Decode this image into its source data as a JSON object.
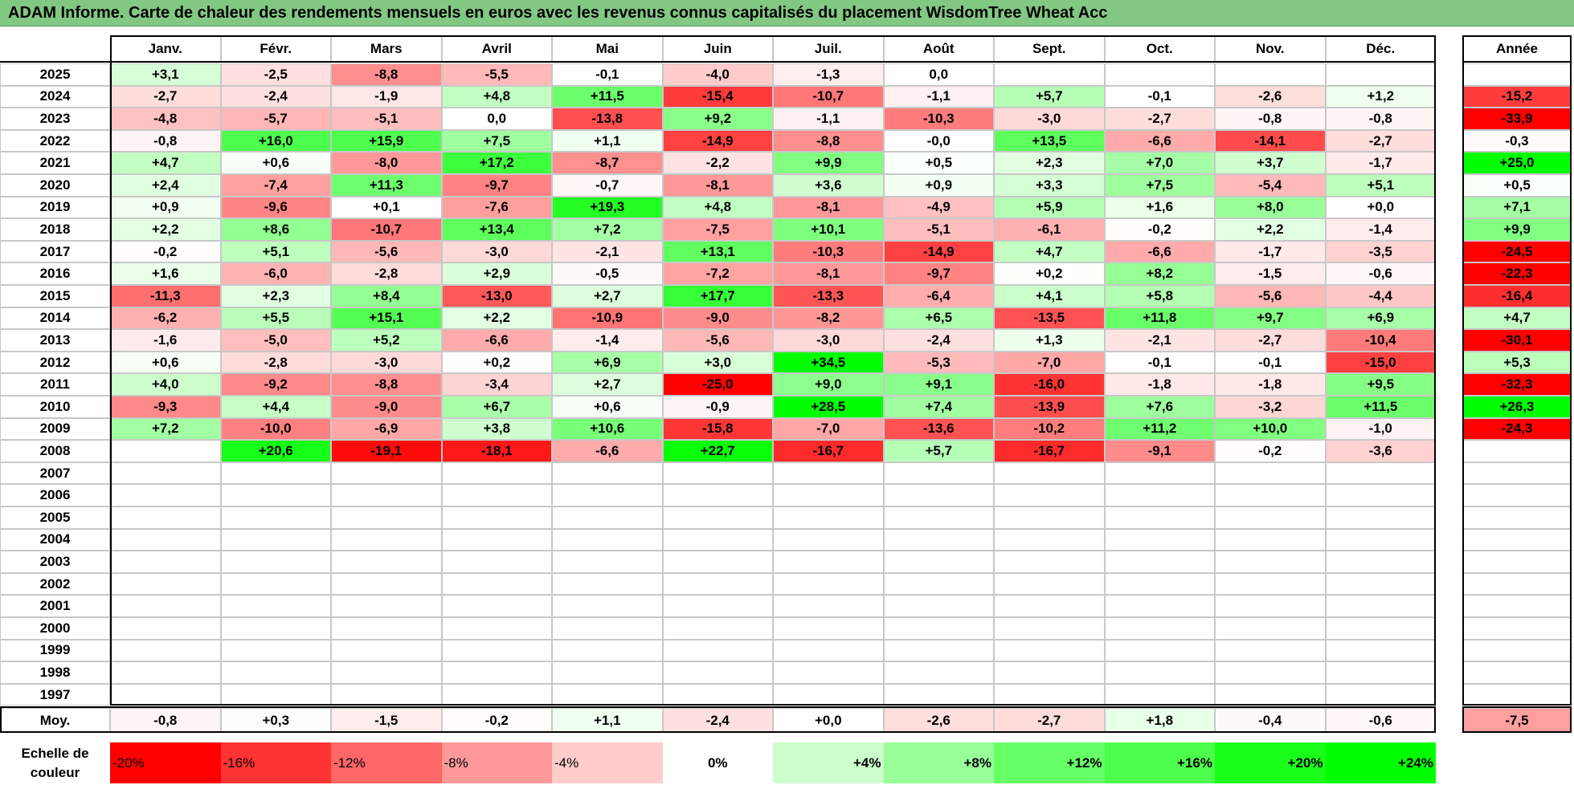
{
  "title": "ADAM Informe. Carte de chaleur des rendements mensuels en euros avec les revenus connus capitalisés du placement WisdomTree Wheat Acc",
  "table": {
    "months": [
      "Janv.",
      "Févr.",
      "Mars",
      "Avril",
      "Mai",
      "Juin",
      "Juil.",
      "Août",
      "Sept.",
      "Oct.",
      "Nov.",
      "Déc."
    ],
    "year_header": "Année",
    "rows": [
      {
        "year": "2025",
        "cells": [
          "+3,1",
          "-2,5",
          "-8,8",
          "-5,5",
          "-0,1",
          "-4,0",
          "-1,3",
          "0,0",
          null,
          null,
          null,
          null
        ],
        "annee": null
      },
      {
        "year": "2024",
        "cells": [
          "-2,7",
          "-2,4",
          "-1,9",
          "+4,8",
          "+11,5",
          "-15,4",
          "-10,7",
          "-1,1",
          "+5,7",
          "-0,1",
          "-2,6",
          "+1,2"
        ],
        "annee": "-15,2"
      },
      {
        "year": "2023",
        "cells": [
          "-4,8",
          "-5,7",
          "-5,1",
          "0,0",
          "-13,8",
          "+9,2",
          "-1,1",
          "-10,3",
          "-3,0",
          "-2,7",
          "-0,8",
          "-0,8"
        ],
        "annee": "-33,9"
      },
      {
        "year": "2022",
        "cells": [
          "-0,8",
          "+16,0",
          "+15,9",
          "+7,5",
          "+1,1",
          "-14,9",
          "-8,8",
          "-0,0",
          "+13,5",
          "-6,6",
          "-14,1",
          "-2,7"
        ],
        "annee": "-0,3"
      },
      {
        "year": "2021",
        "cells": [
          "+4,7",
          "+0,6",
          "-8,0",
          "+17,2",
          "-8,7",
          "-2,2",
          "+9,9",
          "+0,5",
          "+2,3",
          "+7,0",
          "+3,7",
          "-1,7"
        ],
        "annee": "+25,0"
      },
      {
        "year": "2020",
        "cells": [
          "+2,4",
          "-7,4",
          "+11,3",
          "-9,7",
          "-0,7",
          "-8,1",
          "+3,6",
          "+0,9",
          "+3,3",
          "+7,5",
          "-5,4",
          "+5,1"
        ],
        "annee": "+0,5"
      },
      {
        "year": "2019",
        "cells": [
          "+0,9",
          "-9,6",
          "+0,1",
          "-7,6",
          "+19,3",
          "+4,8",
          "-8,1",
          "-4,9",
          "+5,9",
          "+1,6",
          "+8,0",
          "+0,0"
        ],
        "annee": "+7,1"
      },
      {
        "year": "2018",
        "cells": [
          "+2,2",
          "+8,6",
          "-10,7",
          "+13,4",
          "+7,2",
          "-7,5",
          "+10,1",
          "-5,1",
          "-6,1",
          "-0,2",
          "+2,2",
          "-1,4"
        ],
        "annee": "+9,9"
      },
      {
        "year": "2017",
        "cells": [
          "-0,2",
          "+5,1",
          "-5,6",
          "-3,0",
          "-2,1",
          "+13,1",
          "-10,3",
          "-14,9",
          "+4,7",
          "-6,6",
          "-1,7",
          "-3,5"
        ],
        "annee": "-24,5"
      },
      {
        "year": "2016",
        "cells": [
          "+1,6",
          "-6,0",
          "-2,8",
          "+2,9",
          "-0,5",
          "-7,2",
          "-8,1",
          "-9,7",
          "+0,2",
          "+8,2",
          "-1,5",
          "-0,6"
        ],
        "annee": "-22,3"
      },
      {
        "year": "2015",
        "cells": [
          "-11,3",
          "+2,3",
          "+8,4",
          "-13,0",
          "+2,7",
          "+17,7",
          "-13,3",
          "-6,4",
          "+4,1",
          "+5,8",
          "-5,6",
          "-4,4"
        ],
        "annee": "-16,4"
      },
      {
        "year": "2014",
        "cells": [
          "-6,2",
          "+5,5",
          "+15,1",
          "+2,2",
          "-10,9",
          "-9,0",
          "-8,2",
          "+6,5",
          "-13,5",
          "+11,8",
          "+9,7",
          "+6,9"
        ],
        "annee": "+4,7"
      },
      {
        "year": "2013",
        "cells": [
          "-1,6",
          "-5,0",
          "+5,2",
          "-6,6",
          "-1,4",
          "-5,6",
          "-3,0",
          "-2,4",
          "+1,3",
          "-2,1",
          "-2,7",
          "-10,4"
        ],
        "annee": "-30,1"
      },
      {
        "year": "2012",
        "cells": [
          "+0,6",
          "-2,8",
          "-3,0",
          "+0,2",
          "+6,9",
          "+3,0",
          "+34,5",
          "-5,3",
          "-7,0",
          "-0,1",
          "-0,1",
          "-15,0"
        ],
        "annee": "+5,3"
      },
      {
        "year": "2011",
        "cells": [
          "+4,0",
          "-9,2",
          "-8,8",
          "-3,4",
          "+2,7",
          "-25,0",
          "+9,0",
          "+9,1",
          "-16,0",
          "-1,8",
          "-1,8",
          "+9,5"
        ],
        "annee": "-32,3"
      },
      {
        "year": "2010",
        "cells": [
          "-9,3",
          "+4,4",
          "-9,0",
          "+6,7",
          "+0,6",
          "-0,9",
          "+28,5",
          "+7,4",
          "-13,9",
          "+7,6",
          "-3,2",
          "+11,5"
        ],
        "annee": "+26,3"
      },
      {
        "year": "2009",
        "cells": [
          "+7,2",
          "-10,0",
          "-6,9",
          "+3,8",
          "+10,6",
          "-15,8",
          "-7,0",
          "-13,6",
          "-10,2",
          "+11,2",
          "+10,0",
          "-1,0"
        ],
        "annee": "-24,3"
      },
      {
        "year": "2008",
        "cells": [
          null,
          "+20,6",
          "-19,1",
          "-18,1",
          "-6,6",
          "+22,7",
          "-16,7",
          "+5,7",
          "-16,7",
          "-9,1",
          "-0,2",
          "-3,6"
        ],
        "annee": null
      },
      {
        "year": "2007"
      },
      {
        "year": "2006"
      },
      {
        "year": "2005"
      },
      {
        "year": "2004"
      },
      {
        "year": "2003"
      },
      {
        "year": "2002"
      },
      {
        "year": "2001"
      },
      {
        "year": "2000"
      },
      {
        "year": "1999"
      },
      {
        "year": "1998"
      },
      {
        "year": "1997"
      }
    ],
    "average": {
      "label": "Moy.",
      "cells": [
        "-0,8",
        "+0,3",
        "-1,5",
        "-0,2",
        "+1,1",
        "-2,4",
        "+0,0",
        "-2,6",
        "-2,7",
        "+1,8",
        "-0,4",
        "-0,6"
      ],
      "annee": "-7,5"
    }
  },
  "scale": {
    "label": "Echelle de couleur",
    "steps": [
      {
        "label": "-20%",
        "color": "#ff0000"
      },
      {
        "label": "-16%",
        "color": "#ff3333"
      },
      {
        "label": "-12%",
        "color": "#ff6666"
      },
      {
        "label": "-8%",
        "color": "#ff9999"
      },
      {
        "label": "-4%",
        "color": "#ffcccc"
      },
      {
        "label": "0%",
        "color": "#ffffff"
      },
      {
        "label": "+4%",
        "color": "#ccffcc"
      },
      {
        "label": "+8%",
        "color": "#99ff99"
      },
      {
        "label": "+12%",
        "color": "#66ff66"
      },
      {
        "label": "+16%",
        "color": "#4dff4d"
      },
      {
        "label": "+20%",
        "color": "#1aff1a"
      },
      {
        "label": "+24%",
        "color": "#00ff00"
      }
    ]
  }
}
